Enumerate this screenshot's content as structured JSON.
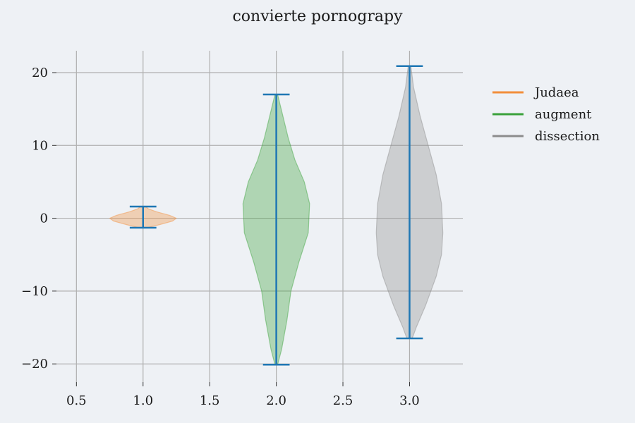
{
  "chart_data": {
    "type": "violin",
    "title": "convierte pornograpy",
    "xlabel": "",
    "ylabel": "",
    "xlim": [
      0.35,
      3.4
    ],
    "ylim": [
      -22.5,
      23.0
    ],
    "xticks": [
      0.5,
      1.0,
      1.5,
      2.0,
      2.5,
      3.0
    ],
    "xtick_labels": [
      "0.5",
      "1.0",
      "1.5",
      "2.0",
      "2.5",
      "3.0"
    ],
    "yticks": [
      -20,
      -10,
      0,
      10,
      20
    ],
    "ytick_labels": [
      "−20",
      "−10",
      "0",
      "10",
      "20"
    ],
    "grid": true,
    "legend_position": "outside-right-top",
    "series": [
      {
        "name": "Judaea",
        "position": 1.0,
        "color": "#f28e3b",
        "min": -1.3,
        "max": 1.6,
        "density": [
          [
            -1.3,
            0.03
          ],
          [
            -0.9,
            0.12
          ],
          [
            -0.4,
            0.22
          ],
          [
            0.0,
            0.25
          ],
          [
            0.4,
            0.2
          ],
          [
            0.9,
            0.1
          ],
          [
            1.3,
            0.04
          ],
          [
            1.6,
            0.02
          ]
        ]
      },
      {
        "name": "augment",
        "position": 2.0,
        "color": "#3aa13a",
        "min": -20.1,
        "max": 17.0,
        "density": [
          [
            -20.1,
            0.01
          ],
          [
            -18.0,
            0.04
          ],
          [
            -14.0,
            0.08
          ],
          [
            -10.0,
            0.11
          ],
          [
            -6.0,
            0.17
          ],
          [
            -2.0,
            0.24
          ],
          [
            2.0,
            0.25
          ],
          [
            5.0,
            0.21
          ],
          [
            8.0,
            0.14
          ],
          [
            11.0,
            0.09
          ],
          [
            14.0,
            0.05
          ],
          [
            17.0,
            0.01
          ]
        ]
      },
      {
        "name": "dissection",
        "position": 3.0,
        "color": "#8c8c8c",
        "min": -16.5,
        "max": 20.9,
        "density": [
          [
            -16.5,
            0.02
          ],
          [
            -15.0,
            0.05
          ],
          [
            -12.0,
            0.12
          ],
          [
            -8.0,
            0.2
          ],
          [
            -5.0,
            0.24
          ],
          [
            -2.0,
            0.25
          ],
          [
            2.0,
            0.24
          ],
          [
            6.0,
            0.2
          ],
          [
            10.0,
            0.14
          ],
          [
            14.0,
            0.08
          ],
          [
            18.0,
            0.03
          ],
          [
            20.9,
            0.01
          ]
        ]
      }
    ],
    "range_line_color": "#1f77b4"
  }
}
